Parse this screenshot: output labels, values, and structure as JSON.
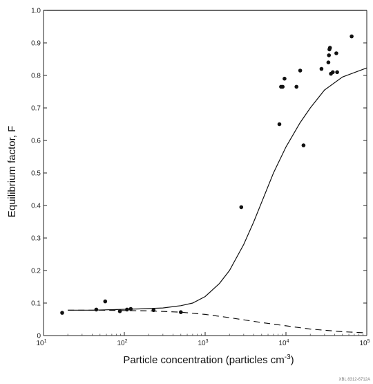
{
  "chart_data": {
    "type": "scatter",
    "title": "",
    "xlabel": "Particle concentration (particles cm",
    "xlabel_superscript": "-3",
    "xlabel_close": ")",
    "ylabel": "Equilibrium factor, F",
    "xscale": "log",
    "xlim": [
      10,
      100000
    ],
    "ylim": [
      0,
      1.0
    ],
    "grid": false,
    "legend": "none",
    "x_ticks": [
      {
        "base": "10",
        "exp": "1",
        "value": 10
      },
      {
        "base": "10",
        "exp": "2",
        "value": 100
      },
      {
        "base": "10",
        "exp": "3",
        "value": 1000
      },
      {
        "base": "10",
        "exp": "4",
        "value": 10000
      },
      {
        "base": "10",
        "exp": "5",
        "value": 100000
      }
    ],
    "y_ticks": [
      {
        "label": "0",
        "value": 0
      },
      {
        "label": "0.1",
        "value": 0.1
      },
      {
        "label": "0.2",
        "value": 0.2
      },
      {
        "label": "0.3",
        "value": 0.3
      },
      {
        "label": "0.4",
        "value": 0.4
      },
      {
        "label": "0.5",
        "value": 0.5
      },
      {
        "label": "0.6",
        "value": 0.6
      },
      {
        "label": "0.7",
        "value": 0.7
      },
      {
        "label": "0.8",
        "value": 0.8
      },
      {
        "label": "0.9",
        "value": 0.9
      },
      {
        "label": "1.0",
        "value": 1.0
      }
    ],
    "reference_line": {
      "y": 1.0
    },
    "points": [
      {
        "x": 17,
        "y": 0.07
      },
      {
        "x": 45,
        "y": 0.08
      },
      {
        "x": 58,
        "y": 0.105
      },
      {
        "x": 88,
        "y": 0.075
      },
      {
        "x": 108,
        "y": 0.08
      },
      {
        "x": 120,
        "y": 0.082
      },
      {
        "x": 230,
        "y": 0.078
      },
      {
        "x": 500,
        "y": 0.072
      },
      {
        "x": 2800,
        "y": 0.395
      },
      {
        "x": 8300,
        "y": 0.65
      },
      {
        "x": 8700,
        "y": 0.765
      },
      {
        "x": 9100,
        "y": 0.765
      },
      {
        "x": 9600,
        "y": 0.79
      },
      {
        "x": 13500,
        "y": 0.765
      },
      {
        "x": 15000,
        "y": 0.815
      },
      {
        "x": 16500,
        "y": 0.585
      },
      {
        "x": 27500,
        "y": 0.82
      },
      {
        "x": 33500,
        "y": 0.84
      },
      {
        "x": 34000,
        "y": 0.862
      },
      {
        "x": 34500,
        "y": 0.88
      },
      {
        "x": 35000,
        "y": 0.885
      },
      {
        "x": 36000,
        "y": 0.805
      },
      {
        "x": 38000,
        "y": 0.81
      },
      {
        "x": 42000,
        "y": 0.868
      },
      {
        "x": 43000,
        "y": 0.81
      },
      {
        "x": 65000,
        "y": 0.92
      }
    ],
    "solid_curve": [
      {
        "x": 20,
        "y": 0.078
      },
      {
        "x": 40,
        "y": 0.078
      },
      {
        "x": 80,
        "y": 0.08
      },
      {
        "x": 150,
        "y": 0.082
      },
      {
        "x": 300,
        "y": 0.085
      },
      {
        "x": 500,
        "y": 0.092
      },
      {
        "x": 700,
        "y": 0.1
      },
      {
        "x": 1000,
        "y": 0.12
      },
      {
        "x": 1500,
        "y": 0.16
      },
      {
        "x": 2000,
        "y": 0.2
      },
      {
        "x": 3000,
        "y": 0.28
      },
      {
        "x": 4000,
        "y": 0.35
      },
      {
        "x": 5000,
        "y": 0.41
      },
      {
        "x": 7000,
        "y": 0.5
      },
      {
        "x": 10000,
        "y": 0.58
      },
      {
        "x": 15000,
        "y": 0.655
      },
      {
        "x": 20000,
        "y": 0.7
      },
      {
        "x": 30000,
        "y": 0.755
      },
      {
        "x": 50000,
        "y": 0.795
      },
      {
        "x": 100000,
        "y": 0.823
      }
    ],
    "dashed_curve": [
      {
        "x": 20,
        "y": 0.078
      },
      {
        "x": 50,
        "y": 0.078
      },
      {
        "x": 100,
        "y": 0.077
      },
      {
        "x": 200,
        "y": 0.076
      },
      {
        "x": 500,
        "y": 0.072
      },
      {
        "x": 1000,
        "y": 0.065
      },
      {
        "x": 2000,
        "y": 0.055
      },
      {
        "x": 5000,
        "y": 0.04
      },
      {
        "x": 10000,
        "y": 0.03
      },
      {
        "x": 20000,
        "y": 0.02
      },
      {
        "x": 50000,
        "y": 0.012
      },
      {
        "x": 100000,
        "y": 0.008
      }
    ]
  },
  "corner_code": "XBL 8312-6712A"
}
